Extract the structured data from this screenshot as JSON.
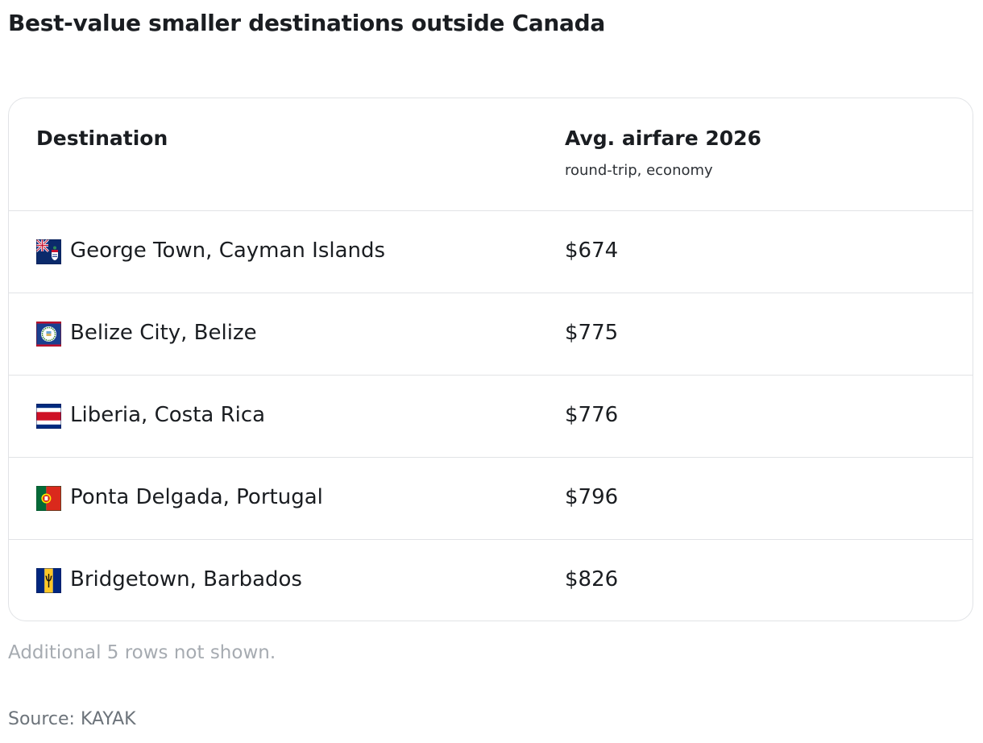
{
  "title": "Best-value smaller destinations outside Canada",
  "chart_data": {
    "type": "table",
    "columns": [
      {
        "label": "Destination",
        "sublabel": ""
      },
      {
        "label": "Avg. airfare 2026",
        "sublabel": "round-trip, economy"
      }
    ],
    "rows": [
      {
        "destination": "George Town, Cayman Islands",
        "flag_icon": "cayman-islands-flag-icon",
        "airfare": "$674"
      },
      {
        "destination": "Belize City, Belize",
        "flag_icon": "belize-flag-icon",
        "airfare": "$775"
      },
      {
        "destination": "Liberia, Costa Rica",
        "flag_icon": "costa-rica-flag-icon",
        "airfare": "$776"
      },
      {
        "destination": "Ponta Delgada, Portugal",
        "flag_icon": "portugal-flag-icon",
        "airfare": "$796"
      },
      {
        "destination": "Bridgetown, Barbados",
        "flag_icon": "barbados-flag-icon",
        "airfare": "$826"
      }
    ]
  },
  "footnote": "Additional 5 rows not shown.",
  "source": "Source: KAYAK"
}
